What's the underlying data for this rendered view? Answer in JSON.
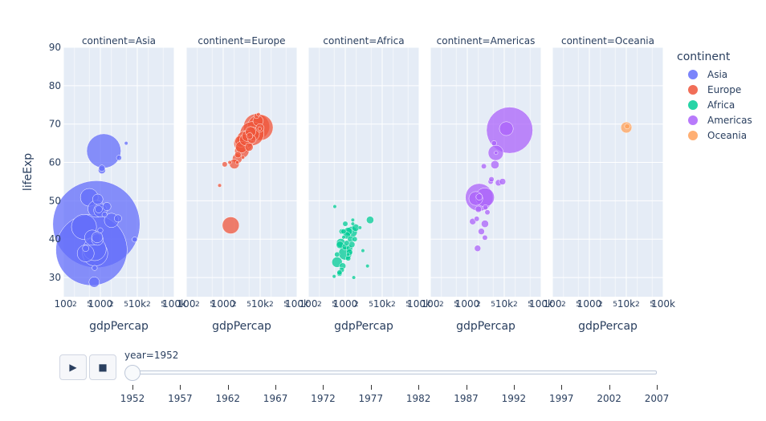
{
  "chart_data": {
    "type": "scatter",
    "subtype": "bubble",
    "x_axis_title": "gdpPercap",
    "y_axis_title": "lifeExp",
    "x_scale": "log",
    "xlim": [
      100,
      100000
    ],
    "ylim": [
      25,
      90
    ],
    "y_ticks": [
      "30",
      "40",
      "50",
      "60",
      "70",
      "80",
      "90"
    ],
    "x_ticks": [
      {
        "v": 100,
        "label": "100"
      },
      {
        "v": 200,
        "label": "2"
      },
      {
        "v": 500,
        "label": "5"
      },
      {
        "v": 1000,
        "label": "1000"
      },
      {
        "v": 2000,
        "label": "2"
      },
      {
        "v": 5000,
        "label": "5"
      },
      {
        "v": 10000,
        "label": "10k"
      },
      {
        "v": 20000,
        "label": "2"
      },
      {
        "v": 50000,
        "label": "5"
      },
      {
        "v": 100000,
        "label": "100k"
      }
    ],
    "grid": true,
    "panels": [
      {
        "title": "continent=Asia",
        "color": "#636efa",
        "points": [
          [
            780,
            43.9,
            556
          ],
          [
            575,
            37.2,
            372
          ],
          [
            1240,
            63.0,
            86
          ],
          [
            360,
            43.2,
            46
          ],
          [
            700,
            37.4,
            39
          ],
          [
            720,
            36.3,
            47
          ],
          [
            600,
            40.4,
            17
          ],
          [
            780,
            47.9,
            21
          ],
          [
            400,
            36.3,
            21
          ],
          [
            500,
            50.9,
            23
          ],
          [
            1000,
            47.5,
            13
          ],
          [
            2000,
            44.9,
            15
          ],
          [
            830,
            39.9,
            10
          ],
          [
            1100,
            58.0,
            4
          ],
          [
            3000,
            45.4,
            4
          ],
          [
            8500,
            39.9,
            2
          ],
          [
            1500,
            48.5,
            5
          ],
          [
            1100,
            58.5,
            3
          ],
          [
            820,
            40.5,
            9
          ],
          [
            680,
            28.8,
            8
          ],
          [
            3200,
            61.2,
            2
          ],
          [
            850,
            50.4,
            8
          ],
          [
            1300,
            46.4,
            2
          ],
          [
            900,
            47.8,
            4
          ],
          [
            700,
            32.5,
            2
          ],
          [
            5000,
            65.0,
            1
          ],
          [
            1000,
            42.3,
            2
          ],
          [
            400,
            37.6,
            3
          ]
        ]
      },
      {
        "title": "continent=Europe",
        "color": "#ef553b",
        "points": [
          [
            8000,
            69.3,
            50
          ],
          [
            6000,
            67.5,
            42
          ],
          [
            10000,
            69.1,
            49
          ],
          [
            4000,
            66.0,
            22
          ],
          [
            5500,
            68.0,
            8
          ],
          [
            3000,
            65.5,
            10
          ],
          [
            3500,
            65.0,
            26
          ],
          [
            2400,
            61.0,
            7
          ],
          [
            6200,
            67.4,
            14
          ],
          [
            8800,
            70.8,
            8
          ],
          [
            8000,
            72.1,
            2
          ],
          [
            9000,
            72.5,
            1
          ],
          [
            3100,
            64.0,
            10
          ],
          [
            1600,
            43.6,
            21
          ],
          [
            2000,
            59.6,
            7
          ],
          [
            3200,
            63.0,
            15
          ],
          [
            4500,
            66.9,
            9
          ],
          [
            2400,
            60.0,
            1
          ],
          [
            9900,
            69.0,
            5
          ],
          [
            1100,
            59.5,
            2
          ],
          [
            5200,
            66.9,
            3
          ],
          [
            9700,
            68.8,
            1
          ],
          [
            4000,
            65.9,
            10
          ],
          [
            5000,
            64.0,
            5
          ],
          [
            6000,
            66.0,
            5
          ],
          [
            800,
            54.0,
            1
          ],
          [
            2500,
            62.0,
            3
          ],
          [
            3400,
            61.3,
            1
          ],
          [
            1500,
            60.0,
            1
          ]
        ]
      },
      {
        "title": "continent=Africa",
        "color": "#00cc96",
        "points": [
          [
            1000,
            36.3,
            13
          ],
          [
            1500,
            41.9,
            9
          ],
          [
            600,
            34.0,
            8
          ],
          [
            760,
            39.0,
            6
          ],
          [
            2500,
            43.0,
            1
          ],
          [
            1900,
            43.0,
            4
          ],
          [
            4700,
            45.0,
            4
          ],
          [
            1400,
            40.0,
            3
          ],
          [
            720,
            38.5,
            4
          ],
          [
            1100,
            41.0,
            4
          ],
          [
            1200,
            42.0,
            5
          ],
          [
            800,
            42.0,
            2
          ],
          [
            1000,
            38.0,
            3
          ],
          [
            1300,
            37.6,
            3
          ],
          [
            1500,
            38.6,
            3
          ],
          [
            1300,
            36.6,
            3
          ],
          [
            850,
            33.0,
            3
          ],
          [
            800,
            32.0,
            2
          ],
          [
            700,
            31.0,
            2
          ],
          [
            600,
            36.0,
            2
          ],
          [
            1800,
            40.0,
            2
          ],
          [
            3000,
            37.0,
            1
          ],
          [
            4000,
            33.0,
            1
          ],
          [
            520,
            48.5,
            1
          ],
          [
            1600,
            45.0,
            1
          ],
          [
            1000,
            44.0,
            2
          ],
          [
            1200,
            35.0,
            2
          ],
          [
            1600,
            44.0,
            1
          ],
          [
            900,
            40.5,
            1
          ],
          [
            700,
            31.3,
            2
          ],
          [
            1700,
            30.0,
            1
          ],
          [
            1100,
            39.0,
            2
          ],
          [
            500,
            30.3,
            1
          ],
          [
            1200,
            36.0,
            1
          ],
          [
            900,
            42.0,
            2
          ]
        ]
      },
      {
        "title": "continent=Americas",
        "color": "#ab63fa",
        "points": [
          [
            13990,
            68.4,
            157
          ],
          [
            11370,
            68.8,
            14
          ],
          [
            2100,
            50.9,
            56
          ],
          [
            5900,
            62.5,
            17
          ],
          [
            3000,
            50.9,
            26
          ],
          [
            7000,
            54.7,
            3
          ],
          [
            5600,
            59.4,
            5
          ],
          [
            9000,
            55.0,
            3
          ],
          [
            4300,
            55.0,
            2
          ],
          [
            1700,
            50.6,
            14
          ],
          [
            2100,
            51.0,
            3
          ],
          [
            3000,
            44.0,
            4
          ],
          [
            2000,
            47.8,
            3
          ],
          [
            2400,
            42.0,
            3
          ],
          [
            1800,
            45.3,
            2
          ],
          [
            5300,
            65.0,
            2
          ],
          [
            2800,
            59.0,
            2
          ],
          [
            3500,
            47.0,
            2
          ],
          [
            3000,
            40.4,
            2
          ],
          [
            1900,
            37.6,
            3
          ],
          [
            3100,
            48.3,
            2
          ],
          [
            1400,
            44.6,
            3
          ],
          [
            4500,
            55.6,
            2
          ],
          [
            6000,
            62.5,
            1
          ]
        ]
      },
      {
        "title": "continent=Oceania",
        "color": "#ffa15a",
        "points": [
          [
            10040,
            69.1,
            9
          ],
          [
            10557,
            69.4,
            2
          ]
        ]
      }
    ]
  },
  "legend": {
    "title": "continent",
    "items": [
      {
        "label": "Asia",
        "color": "#636efa"
      },
      {
        "label": "Europe",
        "color": "#ef553b"
      },
      {
        "label": "Africa",
        "color": "#00cc96"
      },
      {
        "label": "Americas",
        "color": "#ab63fa"
      },
      {
        "label": "Oceania",
        "color": "#ffa15a"
      }
    ]
  },
  "controls": {
    "play_icon": "play-icon",
    "stop_icon": "stop-icon",
    "play_glyph": "▶",
    "stop_glyph": "■"
  },
  "slider": {
    "label": "year=1952",
    "current": "1952",
    "steps": [
      "1952",
      "1957",
      "1962",
      "1967",
      "1972",
      "1977",
      "1982",
      "1987",
      "1992",
      "1997",
      "2002",
      "2007"
    ]
  }
}
